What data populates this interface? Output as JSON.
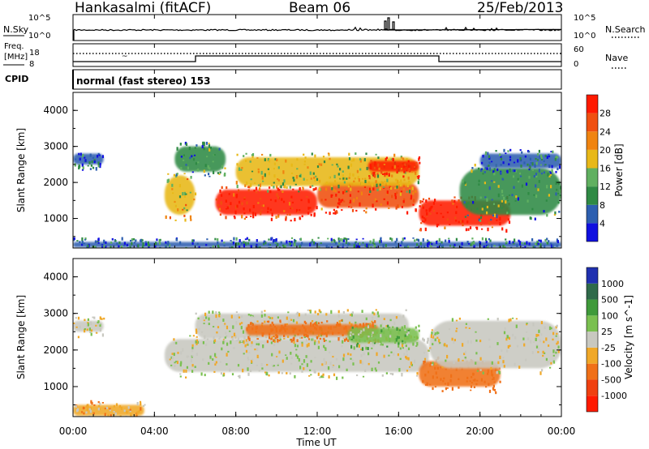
{
  "header": {
    "station": "Hankasalmi (fitACF)",
    "beam": "Beam 06",
    "date": "25/Feb/2013"
  },
  "panels": {
    "nsky": {
      "label": "N.Sky",
      "left_ticks": [
        "10^5",
        "10^0"
      ],
      "right_ticks": [
        "10^5",
        "10^0"
      ],
      "right_label": "N.Search"
    },
    "freq": {
      "label_line1": "Freq.",
      "label_line2": "[MHz]",
      "left_ticks": [
        "18",
        "8"
      ],
      "right_ticks": [
        "60",
        "0"
      ],
      "right_label": "Nave"
    },
    "cpid": {
      "label": "CPID",
      "text": "normal (fast stereo) 153"
    }
  },
  "colors": {
    "power_scale": [
      "#1010e0",
      "#2d5fb0",
      "#2f8a44",
      "#60b060",
      "#e8b818",
      "#f08410",
      "#f05010",
      "#ff1a00"
    ],
    "velocity_scale": [
      "#2030b0",
      "#2f6a4a",
      "#3f9a3a",
      "#7ac050",
      "#c8c8c0",
      "#f0a828",
      "#f07018",
      "#f04010",
      "#ff1a00"
    ]
  },
  "chart_data": [
    {
      "type": "heatmap",
      "title": "",
      "xlabel": "Time UT",
      "ylabel": "Slant Range [km]",
      "xlim": [
        "00:00",
        "24:00"
      ],
      "ylim": [
        180,
        4500
      ],
      "x_ticks": [
        "00:00",
        "04:00",
        "08:00",
        "12:00",
        "16:00",
        "20:00",
        "00:00"
      ],
      "y_ticks": [
        1000,
        2000,
        3000,
        4000
      ],
      "colorbar": {
        "label": "Power [dB]",
        "ticks": [
          4,
          8,
          12,
          16,
          20,
          24,
          28
        ],
        "range": [
          0,
          30
        ]
      },
      "regions": [
        {
          "t_start": 0.0,
          "t_end": 1.5,
          "r_low": 2500,
          "r_high": 2800,
          "value": 6
        },
        {
          "t_start": 4.5,
          "t_end": 6.0,
          "r_low": 1100,
          "r_high": 2200,
          "value": 18
        },
        {
          "t_start": 5.0,
          "t_end": 7.5,
          "r_low": 2300,
          "r_high": 3000,
          "value": 10
        },
        {
          "t_start": 7.0,
          "t_end": 12.0,
          "r_low": 1100,
          "r_high": 1800,
          "value": 27
        },
        {
          "t_start": 12.0,
          "t_end": 17.0,
          "r_low": 1300,
          "r_high": 2000,
          "value": 25
        },
        {
          "t_start": 8.0,
          "t_end": 17.0,
          "r_low": 1900,
          "r_high": 2700,
          "value": 15
        },
        {
          "t_start": 14.5,
          "t_end": 17.0,
          "r_low": 2300,
          "r_high": 2600,
          "value": 28
        },
        {
          "t_start": 17.0,
          "t_end": 21.5,
          "r_low": 800,
          "r_high": 1500,
          "value": 29
        },
        {
          "t_start": 19.0,
          "t_end": 24.0,
          "r_low": 1100,
          "r_high": 2400,
          "value": 10
        },
        {
          "t_start": 20.0,
          "t_end": 24.0,
          "r_low": 2400,
          "r_high": 2800,
          "value": 6
        },
        {
          "t_start": 0.0,
          "t_end": 24.0,
          "r_low": 200,
          "r_high": 350,
          "value": 7
        }
      ]
    },
    {
      "type": "heatmap",
      "title": "",
      "xlabel": "Time UT",
      "ylabel": "Slant Range [km]",
      "xlim": [
        "00:00",
        "24:00"
      ],
      "ylim": [
        180,
        4500
      ],
      "x_ticks": [
        "00:00",
        "04:00",
        "08:00",
        "12:00",
        "16:00",
        "20:00",
        "00:00"
      ],
      "y_ticks": [
        1000,
        2000,
        3000,
        4000
      ],
      "colorbar": {
        "label": "Velocity [m s^-1]",
        "ticks": [
          "1000",
          "500",
          "100",
          "25",
          "-25",
          "-100",
          "-500",
          "-1000"
        ]
      },
      "regions": [
        {
          "t_start": 0.0,
          "t_end": 1.5,
          "r_low": 2500,
          "r_high": 2800,
          "value": 0
        },
        {
          "t_start": 4.5,
          "t_end": 17.5,
          "r_low": 1400,
          "r_high": 2300,
          "value": 0
        },
        {
          "t_start": 6.0,
          "t_end": 16.5,
          "r_low": 2300,
          "r_high": 3000,
          "value": 0
        },
        {
          "t_start": 8.5,
          "t_end": 15.0,
          "r_low": 2400,
          "r_high": 2700,
          "value": -300
        },
        {
          "t_start": 13.5,
          "t_end": 17.0,
          "r_low": 2200,
          "r_high": 2600,
          "value": 60
        },
        {
          "t_start": 17.0,
          "t_end": 21.0,
          "r_low": 1000,
          "r_high": 1700,
          "value": -250
        },
        {
          "t_start": 17.5,
          "t_end": 24.0,
          "r_low": 1500,
          "r_high": 2800,
          "value": 0
        },
        {
          "t_start": 0.0,
          "t_end": 3.5,
          "r_low": 200,
          "r_high": 500,
          "value": -80
        }
      ]
    }
  ]
}
